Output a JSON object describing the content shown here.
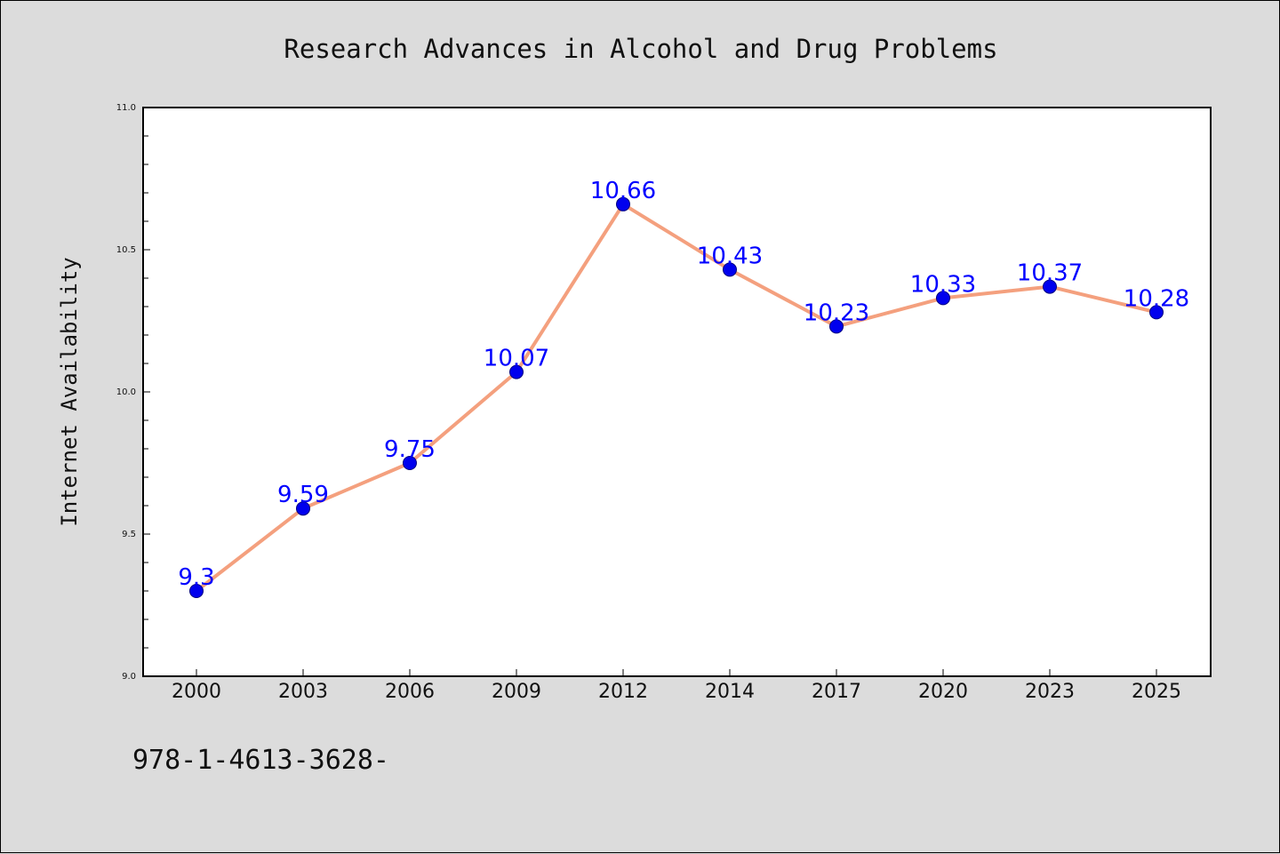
{
  "chart_data": {
    "type": "line",
    "title": "Research Advances in Alcohol and Drug Problems",
    "xlabel": "",
    "ylabel": "Internet Availability",
    "categories": [
      "2000",
      "2003",
      "2006",
      "2009",
      "2012",
      "2014",
      "2017",
      "2020",
      "2023",
      "2025"
    ],
    "series": [
      {
        "values": [
          9.3,
          9.59,
          9.75,
          10.07,
          10.66,
          10.43,
          10.23,
          10.33,
          10.37,
          10.28
        ],
        "data_labels": [
          "9.3",
          "9.59",
          "9.75",
          "10.07",
          "10.66",
          "10.43",
          "10.23",
          "10.33",
          "10.37",
          "10.28"
        ]
      }
    ],
    "ylim": [
      9.0,
      11.0
    ],
    "yticks": [
      "9.0",
      "9.5",
      "10.0",
      "10.5",
      "11.0"
    ],
    "grid": false,
    "legend": "none"
  },
  "footer": {
    "note": "978-1-4613-3628-"
  },
  "colors": {
    "line": "#f4a07e",
    "marker_fill": "#0000ee",
    "marker_edge": "#000080",
    "data_label": "#0000ff",
    "background": "#dcdcdc",
    "plot_background": "#ffffff"
  }
}
